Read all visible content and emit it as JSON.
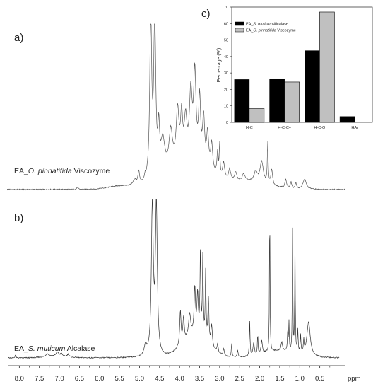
{
  "chart_data": [
    {
      "type": "line",
      "panel_label": "a)",
      "series_label_plain": "EA_",
      "series_label_italic": "O. pinnatifida",
      "series_label_tail": " Viscozyme",
      "xlabel": "ppm",
      "xlim": [
        8.2,
        0.0
      ],
      "x_ticks": [
        "8.0",
        "7.5",
        "7.0",
        "6.5",
        "6.0",
        "5.5",
        "5.0",
        "4.5",
        "4.0",
        "3.5",
        "3.0",
        "2.5",
        "2.0",
        "1.5",
        "1.0",
        "0.5"
      ],
      "peaks": [
        {
          "ppm": 6.55,
          "h": 3,
          "w": 0.02
        },
        {
          "ppm": 5.12,
          "h": 8,
          "w": 0.05
        },
        {
          "ppm": 5.02,
          "h": 18,
          "w": 0.025
        },
        {
          "ppm": 4.86,
          "h": 6,
          "w": 0.02
        },
        {
          "ppm": 4.72,
          "h": 232,
          "w": 0.028
        },
        {
          "ppm": 4.62,
          "h": 232,
          "w": 0.028
        },
        {
          "ppm": 4.52,
          "h": 58,
          "w": 0.025
        },
        {
          "ppm": 4.42,
          "h": 45,
          "w": 0.06
        },
        {
          "ppm": 4.22,
          "h": 50,
          "w": 0.05
        },
        {
          "ppm": 4.05,
          "h": 72,
          "w": 0.04
        },
        {
          "ppm": 3.95,
          "h": 60,
          "w": 0.03
        },
        {
          "ppm": 3.85,
          "h": 55,
          "w": 0.04
        },
        {
          "ppm": 3.72,
          "h": 92,
          "w": 0.04
        },
        {
          "ppm": 3.62,
          "h": 120,
          "w": 0.035
        },
        {
          "ppm": 3.5,
          "h": 88,
          "w": 0.03
        },
        {
          "ppm": 3.4,
          "h": 65,
          "w": 0.03
        },
        {
          "ppm": 3.3,
          "h": 48,
          "w": 0.03
        },
        {
          "ppm": 3.2,
          "h": 38,
          "w": 0.03
        },
        {
          "ppm": 3.05,
          "h": 34,
          "w": 0.02
        },
        {
          "ppm": 3.0,
          "h": 45,
          "w": 0.01
        },
        {
          "ppm": 2.9,
          "h": 22,
          "w": 0.03
        },
        {
          "ppm": 2.75,
          "h": 15,
          "w": 0.03
        },
        {
          "ppm": 2.6,
          "h": 12,
          "w": 0.03
        },
        {
          "ppm": 2.4,
          "h": 10,
          "w": 0.04
        },
        {
          "ppm": 2.1,
          "h": 14,
          "w": 0.05
        },
        {
          "ppm": 1.95,
          "h": 30,
          "w": 0.05
        },
        {
          "ppm": 1.8,
          "h": 58,
          "w": 0.012
        },
        {
          "ppm": 1.7,
          "h": 22,
          "w": 0.025
        },
        {
          "ppm": 1.35,
          "h": 12,
          "w": 0.025
        },
        {
          "ppm": 1.22,
          "h": 9,
          "w": 0.02
        },
        {
          "ppm": 1.1,
          "h": 8,
          "w": 0.02
        },
        {
          "ppm": 0.88,
          "h": 14,
          "w": 0.05
        }
      ],
      "humps": [
        {
          "ppm": 3.8,
          "h": 38,
          "w": 0.75
        },
        {
          "ppm": 2.3,
          "h": 10,
          "w": 0.7
        },
        {
          "ppm": 5.5,
          "h": 4,
          "w": 0.4
        }
      ]
    },
    {
      "type": "line",
      "panel_label": "b)",
      "series_label_plain": "EA_",
      "series_label_italic": "S. muticum",
      "series_label_tail": " Alcalase",
      "xlabel": "ppm",
      "xlim": [
        8.2,
        0.0
      ],
      "peaks": [
        {
          "ppm": 8.1,
          "h": 4,
          "w": 0.01
        },
        {
          "ppm": 7.3,
          "h": 4,
          "w": 0.05
        },
        {
          "ppm": 7.05,
          "h": 6,
          "w": 0.04
        },
        {
          "ppm": 6.95,
          "h": 4,
          "w": 0.03
        },
        {
          "ppm": 6.78,
          "h": 4,
          "w": 0.03
        },
        {
          "ppm": 4.68,
          "h": 215,
          "w": 0.028
        },
        {
          "ppm": 4.58,
          "h": 215,
          "w": 0.028
        },
        {
          "ppm": 4.85,
          "h": 14,
          "w": 0.04
        },
        {
          "ppm": 3.98,
          "h": 48,
          "w": 0.02
        },
        {
          "ppm": 3.9,
          "h": 35,
          "w": 0.02
        },
        {
          "ppm": 3.75,
          "h": 32,
          "w": 0.03
        },
        {
          "ppm": 3.62,
          "h": 65,
          "w": 0.02
        },
        {
          "ppm": 3.55,
          "h": 55,
          "w": 0.02
        },
        {
          "ppm": 3.48,
          "h": 118,
          "w": 0.012
        },
        {
          "ppm": 3.42,
          "h": 112,
          "w": 0.012
        },
        {
          "ppm": 3.35,
          "h": 95,
          "w": 0.012
        },
        {
          "ppm": 3.28,
          "h": 62,
          "w": 0.015
        },
        {
          "ppm": 3.2,
          "h": 30,
          "w": 0.02
        },
        {
          "ppm": 3.05,
          "h": 12,
          "w": 0.015
        },
        {
          "ppm": 2.9,
          "h": 10,
          "w": 0.015
        },
        {
          "ppm": 2.7,
          "h": 20,
          "w": 0.01
        },
        {
          "ppm": 2.55,
          "h": 10,
          "w": 0.015
        },
        {
          "ppm": 2.25,
          "h": 50,
          "w": 0.01
        },
        {
          "ppm": 2.15,
          "h": 18,
          "w": 0.02
        },
        {
          "ppm": 2.05,
          "h": 28,
          "w": 0.01
        },
        {
          "ppm": 1.95,
          "h": 18,
          "w": 0.02
        },
        {
          "ppm": 1.75,
          "h": 210,
          "w": 0.008
        },
        {
          "ppm": 1.45,
          "h": 12,
          "w": 0.02
        },
        {
          "ppm": 1.3,
          "h": 30,
          "w": 0.01
        },
        {
          "ppm": 1.27,
          "h": 40,
          "w": 0.008
        },
        {
          "ppm": 1.18,
          "h": 178,
          "w": 0.008
        },
        {
          "ppm": 1.12,
          "h": 160,
          "w": 0.008
        },
        {
          "ppm": 1.05,
          "h": 32,
          "w": 0.01
        },
        {
          "ppm": 0.98,
          "h": 26,
          "w": 0.01
        },
        {
          "ppm": 0.9,
          "h": 18,
          "w": 0.01
        },
        {
          "ppm": 0.78,
          "h": 48,
          "w": 0.05
        }
      ],
      "humps": [
        {
          "ppm": 3.6,
          "h": 32,
          "w": 0.45
        },
        {
          "ppm": 1.5,
          "h": 10,
          "w": 0.6
        },
        {
          "ppm": 7.1,
          "h": 2,
          "w": 0.4
        }
      ]
    },
    {
      "type": "bar",
      "panel_label": "c)",
      "categories": [
        "H-C",
        "H-C-C=",
        "H-C-O",
        "HAr"
      ],
      "ylabel": "Percentage (%)",
      "ylim": [
        0,
        70
      ],
      "y_ticks": [
        0,
        10,
        20,
        30,
        40,
        50,
        60,
        70
      ],
      "legend_position": "top-left",
      "series": [
        {
          "name_plain": "EA_",
          "name_italic": "S. muticum",
          "name_tail": " Alcalase",
          "color": "#000000",
          "values": [
            26,
            26.5,
            43.5,
            3.5
          ]
        },
        {
          "name_plain": "EA_",
          "name_italic": "O. pinnatifida",
          "name_tail": " Viscozyme",
          "color": "#c0c0c0",
          "values": [
            8.5,
            24.5,
            67,
            0
          ]
        }
      ]
    }
  ]
}
